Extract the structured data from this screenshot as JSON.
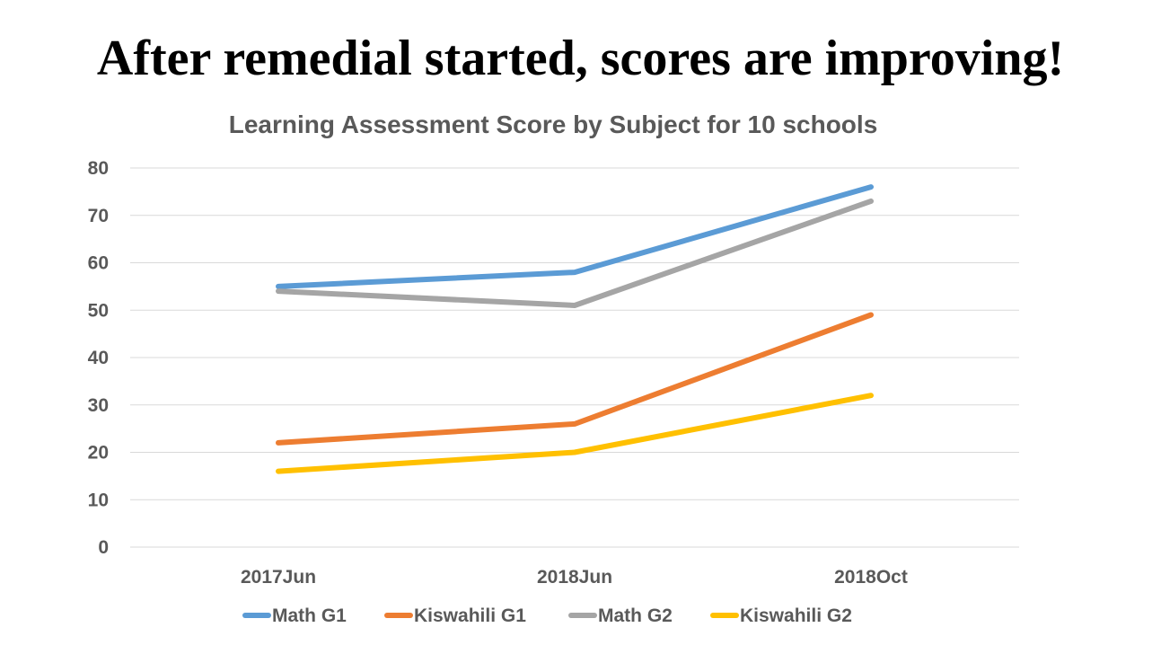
{
  "slide": {
    "title": "After remedial started, scores are improving!"
  },
  "chart_data": {
    "type": "line",
    "title": "Learning Assessment Score by Subject for 10 schools",
    "categories": [
      "2017Jun",
      "2018Jun",
      "2018Oct"
    ],
    "ylim": [
      0,
      80
    ],
    "yticks": [
      0,
      10,
      20,
      30,
      40,
      50,
      60,
      70,
      80
    ],
    "grid": true,
    "legend_position": "bottom",
    "series": [
      {
        "name": "Math G1",
        "values": [
          55,
          58,
          76
        ],
        "color": "#5B9BD5"
      },
      {
        "name": "Kiswahili G1",
        "values": [
          22,
          26,
          49
        ],
        "color": "#ED7D31"
      },
      {
        "name": "Math G2",
        "values": [
          54,
          51,
          73
        ],
        "color": "#A5A5A5"
      },
      {
        "name": "Kiswahili G2",
        "values": [
          16,
          20,
          32
        ],
        "color": "#FFC000"
      }
    ]
  }
}
